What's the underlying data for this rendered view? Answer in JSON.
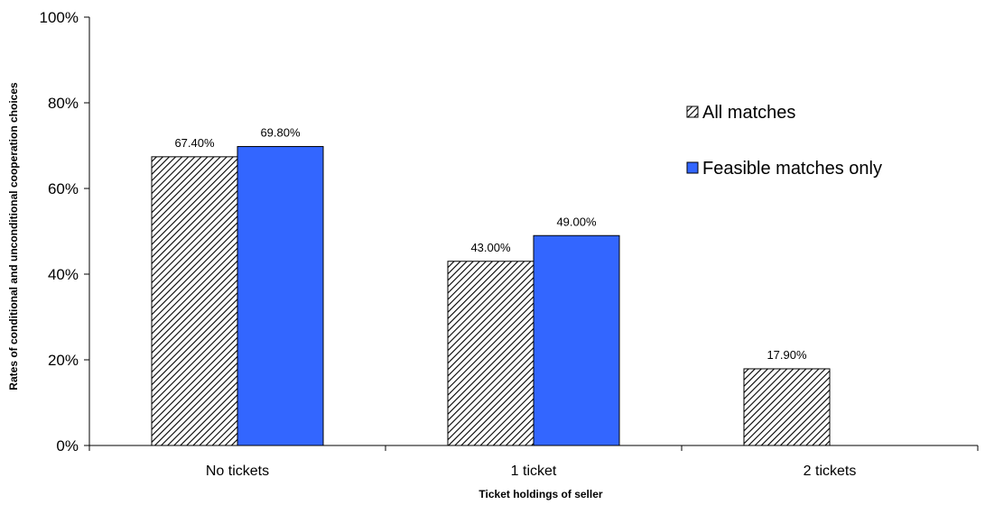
{
  "chart_data": {
    "type": "bar",
    "title": "",
    "xlabel": "Ticket holdings of seller",
    "ylabel": "Rates of conditional and unconditional cooperation choices",
    "categories": [
      "No tickets",
      "1 ticket",
      "2 tickets"
    ],
    "y_ticks": [
      "0%",
      "20%",
      "40%",
      "60%",
      "80%",
      "100%"
    ],
    "ylim": [
      0,
      100
    ],
    "grid": false,
    "legend_position": "right",
    "series": [
      {
        "name": "All matches",
        "values": [
          67.4,
          43.0,
          17.9
        ],
        "labels": [
          "67.40%",
          "43.00%",
          "17.90%"
        ],
        "pattern": "diagonal-hatch",
        "color": "#000000"
      },
      {
        "name": "Feasible matches only",
        "values": [
          69.8,
          49.0,
          null
        ],
        "labels": [
          "69.80%",
          "49.00%",
          ""
        ],
        "pattern": "solid",
        "color": "#3366ff"
      }
    ]
  }
}
